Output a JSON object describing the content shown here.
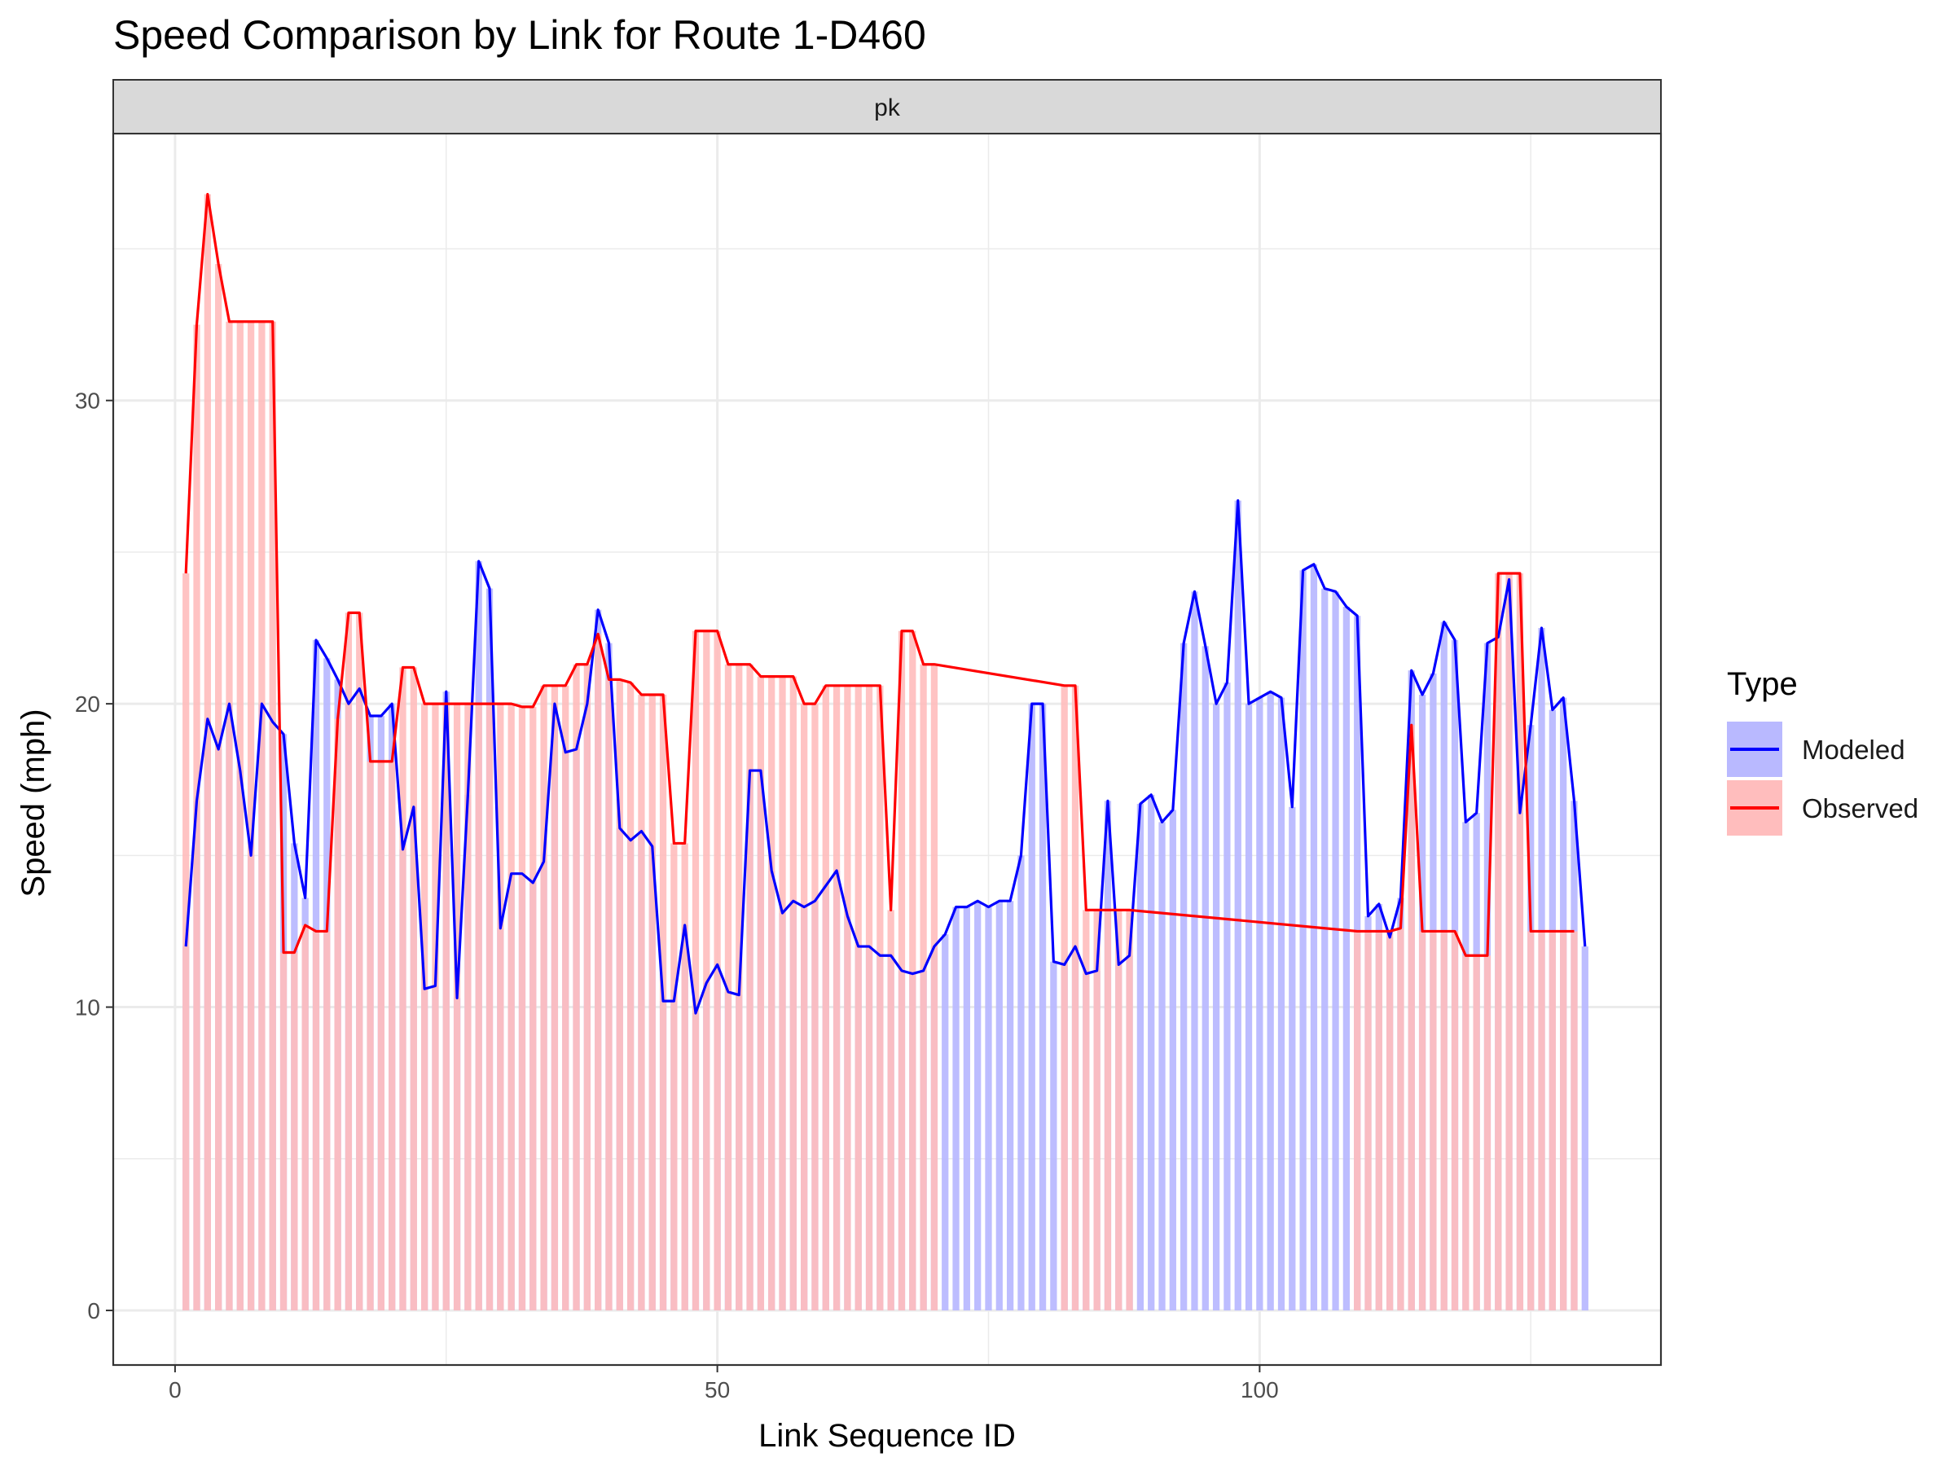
{
  "chart_data": {
    "type": "line",
    "title": "Speed Comparison by Link for Route 1-D460",
    "facet_label": "pk",
    "xlabel": "Link Sequence ID",
    "ylabel": "Speed (mph)",
    "xlim": [
      -5.7,
      137
    ],
    "ylim": [
      -1.8,
      38.8
    ],
    "x_ticks": [
      0,
      50,
      100
    ],
    "y_ticks": [
      0,
      10,
      20,
      30
    ],
    "grid": true,
    "legend_title": "Type",
    "legend_position": "right",
    "colors": {
      "modeled_line": "#0000ff",
      "observed_line": "#ff0000",
      "modeled_fill": "#b9b9ff",
      "observed_fill": "#ffbdbd",
      "strip_bg": "#d9d9d9",
      "grid": "#ebebeb",
      "border": "#333333"
    },
    "series": [
      {
        "name": "Modeled",
        "x": [
          1,
          2,
          3,
          4,
          5,
          6,
          7,
          8,
          9,
          10,
          11,
          12,
          13,
          14,
          15,
          16,
          17,
          18,
          19,
          20,
          21,
          22,
          23,
          24,
          25,
          26,
          27,
          28,
          29,
          30,
          31,
          32,
          33,
          34,
          35,
          36,
          37,
          38,
          39,
          40,
          41,
          42,
          43,
          44,
          45,
          46,
          47,
          48,
          49,
          50,
          51,
          52,
          53,
          54,
          55,
          56,
          57,
          58,
          59,
          60,
          61,
          62,
          63,
          64,
          65,
          66,
          67,
          68,
          69,
          70,
          71,
          72,
          73,
          74,
          75,
          76,
          77,
          78,
          79,
          80,
          81,
          82,
          83,
          84,
          85,
          86,
          87,
          88,
          89,
          90,
          91,
          92,
          93,
          94,
          95,
          96,
          97,
          98,
          99,
          100,
          101,
          102,
          103,
          104,
          105,
          106,
          107,
          108,
          109,
          110,
          111,
          112,
          113,
          114,
          115,
          116,
          117,
          118,
          119,
          120,
          121,
          122,
          123,
          124,
          125,
          126,
          127,
          128,
          129,
          130
        ],
        "values": [
          12.0,
          16.8,
          19.5,
          18.5,
          20.0,
          17.8,
          15.0,
          20.0,
          19.4,
          19.0,
          15.4,
          13.6,
          22.1,
          21.5,
          20.8,
          20.0,
          20.5,
          19.6,
          19.6,
          20.0,
          15.2,
          16.6,
          10.6,
          10.7,
          20.4,
          10.3,
          17.0,
          24.7,
          23.8,
          12.6,
          14.4,
          14.4,
          14.1,
          14.8,
          20.0,
          18.4,
          18.5,
          20.0,
          23.1,
          22.0,
          15.9,
          15.5,
          15.8,
          15.3,
          10.2,
          10.2,
          12.7,
          9.8,
          10.8,
          11.4,
          10.5,
          10.4,
          17.8,
          17.8,
          14.5,
          13.1,
          13.5,
          13.3,
          13.5,
          14.0,
          14.5,
          13.0,
          12.0,
          12.0,
          11.7,
          11.7,
          11.2,
          11.1,
          11.2,
          12.0,
          12.4,
          13.3,
          13.3,
          13.5,
          13.3,
          13.5,
          13.5,
          15.0,
          20.0,
          20.0,
          11.5,
          11.4,
          12.0,
          11.1,
          11.2,
          16.8,
          11.4,
          11.7,
          16.7,
          17.0,
          16.1,
          16.5,
          22.0,
          23.7,
          21.9,
          20.0,
          20.7,
          26.7,
          20.0,
          20.2,
          20.4,
          20.2,
          16.6,
          24.4,
          24.6,
          23.8,
          23.7,
          23.2,
          22.9,
          13.0,
          13.4,
          12.3,
          13.6,
          21.1,
          20.3,
          21.0,
          22.7,
          22.1,
          16.1,
          16.4,
          22.0,
          22.2,
          24.1,
          16.4,
          19.3,
          22.5,
          19.8,
          20.2,
          16.8,
          12.0
        ]
      },
      {
        "name": "Observed",
        "x": [
          1,
          2,
          3,
          4,
          5,
          6,
          7,
          8,
          9,
          10,
          11,
          12,
          13,
          14,
          15,
          16,
          17,
          18,
          19,
          20,
          21,
          22,
          23,
          24,
          25,
          26,
          27,
          28,
          29,
          30,
          31,
          32,
          33,
          34,
          35,
          36,
          37,
          38,
          39,
          40,
          41,
          42,
          43,
          44,
          45,
          46,
          47,
          48,
          49,
          50,
          51,
          52,
          53,
          54,
          55,
          56,
          57,
          58,
          59,
          60,
          61,
          62,
          63,
          64,
          65,
          66,
          67,
          68,
          69,
          70,
          82,
          83,
          84,
          85,
          86,
          87,
          88,
          109,
          110,
          111,
          112,
          113,
          114,
          115,
          116,
          117,
          118,
          119,
          120,
          121,
          122,
          123,
          124,
          125,
          126,
          127,
          128,
          129
        ],
        "values": [
          24.3,
          32.5,
          36.8,
          34.5,
          32.6,
          32.6,
          32.6,
          32.6,
          32.6,
          11.8,
          11.8,
          12.7,
          12.5,
          12.5,
          19.5,
          23.0,
          23.0,
          18.1,
          18.1,
          18.1,
          21.2,
          21.2,
          20.0,
          20.0,
          20.0,
          20.0,
          20.0,
          20.0,
          20.0,
          20.0,
          20.0,
          19.9,
          19.9,
          20.6,
          20.6,
          20.6,
          21.3,
          21.3,
          22.3,
          20.8,
          20.8,
          20.7,
          20.3,
          20.3,
          20.3,
          15.4,
          15.4,
          22.4,
          22.4,
          22.4,
          21.3,
          21.3,
          21.3,
          20.9,
          20.9,
          20.9,
          20.9,
          20.0,
          20.0,
          20.6,
          20.6,
          20.6,
          20.6,
          20.6,
          20.6,
          13.2,
          22.4,
          22.4,
          21.3,
          21.3,
          20.6,
          20.6,
          13.2,
          13.2,
          13.2,
          13.2,
          13.2,
          12.5,
          12.5,
          12.5,
          12.5,
          12.6,
          19.3,
          12.5,
          12.5,
          12.5,
          12.5,
          11.7,
          11.7,
          11.7,
          24.3,
          24.3,
          24.3,
          12.5,
          12.5,
          12.5,
          12.5,
          12.5
        ]
      }
    ]
  }
}
